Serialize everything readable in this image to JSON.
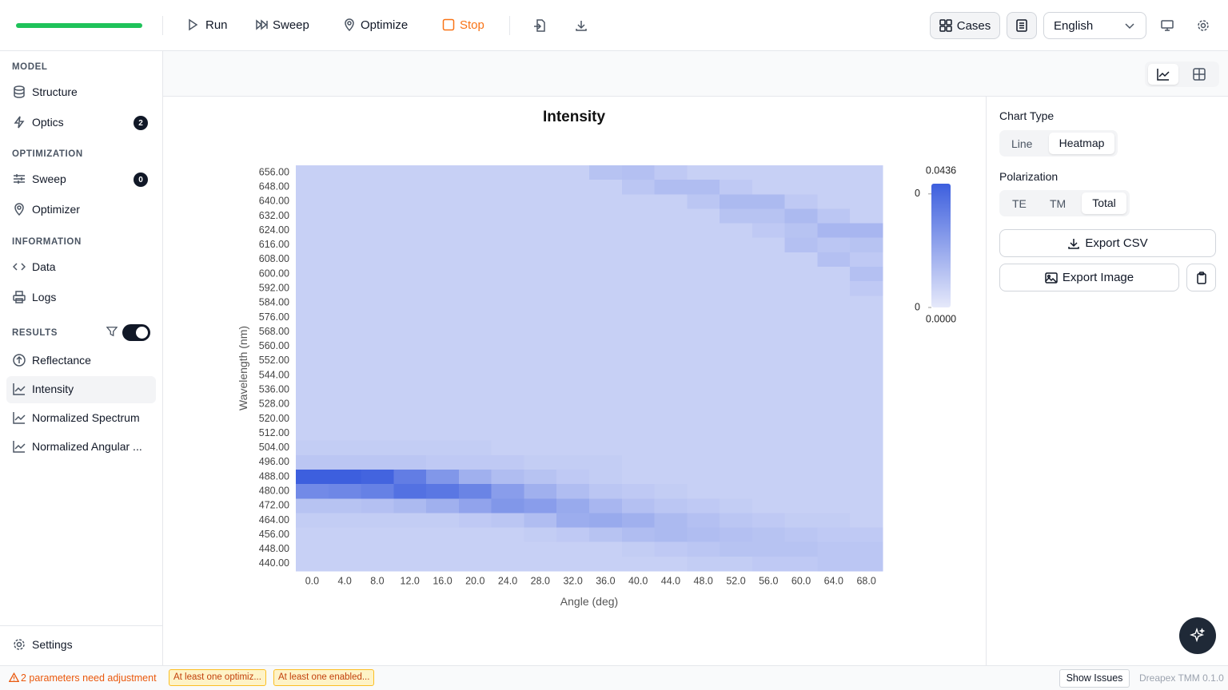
{
  "toolbar": {
    "run": "Run",
    "sweep": "Sweep",
    "optimize": "Optimize",
    "stop": "Stop",
    "cases": "Cases",
    "language": "English"
  },
  "sidebar": {
    "sections": [
      {
        "title": "MODEL",
        "items": [
          {
            "label": "Structure"
          },
          {
            "label": "Optics",
            "badge": 2
          }
        ]
      },
      {
        "title": "OPTIMIZATION",
        "items": [
          {
            "label": "Sweep",
            "badge": 0
          },
          {
            "label": "Optimizer"
          }
        ]
      },
      {
        "title": "INFORMATION",
        "items": [
          {
            "label": "Data"
          },
          {
            "label": "Logs"
          }
        ]
      },
      {
        "title": "RESULTS",
        "items": [
          {
            "label": "Reflectance"
          },
          {
            "label": "Intensity"
          },
          {
            "label": "Normalized Spectrum"
          },
          {
            "label": "Normalized Angular ..."
          }
        ]
      }
    ],
    "settings": "Settings"
  },
  "chart_data": {
    "type": "heatmap",
    "title": "Intensity",
    "x_label": "Angle (deg)",
    "y_label": "Wavelength (nm)",
    "categories": [
      "0.0",
      "4.0",
      "8.0",
      "12.0",
      "16.0",
      "20.0",
      "24.0",
      "28.0",
      "32.0",
      "36.0",
      "40.0",
      "44.0",
      "48.0",
      "52.0",
      "56.0",
      "60.0",
      "64.0",
      "68.0"
    ],
    "y_categories": [
      "656.00",
      "648.00",
      "640.00",
      "632.00",
      "624.00",
      "616.00",
      "608.00",
      "600.00",
      "592.00",
      "584.00",
      "576.00",
      "568.00",
      "560.00",
      "552.00",
      "544.00",
      "536.00",
      "528.00",
      "520.00",
      "512.00",
      "504.00",
      "496.00",
      "488.00",
      "480.00",
      "472.00",
      "464.00",
      "456.00",
      "448.00",
      "440.00"
    ],
    "values": [
      [
        0.008,
        0.008,
        0.008,
        0.008,
        0.008,
        0.008,
        0.008,
        0.008,
        0.008,
        0.012,
        0.013,
        0.01,
        0.008,
        0.008,
        0.008,
        0.008,
        0.008,
        0.008
      ],
      [
        0.008,
        0.008,
        0.008,
        0.008,
        0.008,
        0.008,
        0.008,
        0.008,
        0.008,
        0.008,
        0.011,
        0.014,
        0.014,
        0.01,
        0.008,
        0.008,
        0.008,
        0.008
      ],
      [
        0.008,
        0.008,
        0.008,
        0.008,
        0.008,
        0.008,
        0.008,
        0.008,
        0.008,
        0.008,
        0.008,
        0.008,
        0.011,
        0.015,
        0.015,
        0.01,
        0.008,
        0.008
      ],
      [
        0.008,
        0.008,
        0.008,
        0.008,
        0.008,
        0.008,
        0.008,
        0.008,
        0.008,
        0.008,
        0.008,
        0.008,
        0.008,
        0.012,
        0.012,
        0.015,
        0.011,
        0.008
      ],
      [
        0.008,
        0.008,
        0.008,
        0.008,
        0.008,
        0.008,
        0.008,
        0.008,
        0.008,
        0.008,
        0.008,
        0.008,
        0.008,
        0.008,
        0.01,
        0.012,
        0.016,
        0.016
      ],
      [
        0.008,
        0.008,
        0.008,
        0.008,
        0.008,
        0.008,
        0.008,
        0.008,
        0.008,
        0.008,
        0.008,
        0.008,
        0.008,
        0.008,
        0.008,
        0.013,
        0.011,
        0.012
      ],
      [
        0.008,
        0.008,
        0.008,
        0.008,
        0.008,
        0.008,
        0.008,
        0.008,
        0.008,
        0.008,
        0.008,
        0.008,
        0.008,
        0.008,
        0.008,
        0.008,
        0.013,
        0.01
      ],
      [
        0.008,
        0.008,
        0.008,
        0.008,
        0.008,
        0.008,
        0.008,
        0.008,
        0.008,
        0.008,
        0.008,
        0.008,
        0.008,
        0.008,
        0.008,
        0.008,
        0.008,
        0.013
      ],
      [
        0.008,
        0.008,
        0.008,
        0.008,
        0.008,
        0.008,
        0.008,
        0.008,
        0.008,
        0.008,
        0.008,
        0.008,
        0.008,
        0.008,
        0.008,
        0.008,
        0.008,
        0.01
      ],
      [
        0.008,
        0.008,
        0.008,
        0.008,
        0.008,
        0.008,
        0.008,
        0.008,
        0.008,
        0.008,
        0.008,
        0.008,
        0.008,
        0.008,
        0.008,
        0.008,
        0.008,
        0.008
      ],
      [
        0.008,
        0.008,
        0.008,
        0.008,
        0.008,
        0.008,
        0.008,
        0.008,
        0.008,
        0.008,
        0.008,
        0.008,
        0.008,
        0.008,
        0.008,
        0.008,
        0.008,
        0.008
      ],
      [
        0.008,
        0.008,
        0.008,
        0.008,
        0.008,
        0.008,
        0.008,
        0.008,
        0.008,
        0.008,
        0.008,
        0.008,
        0.008,
        0.008,
        0.008,
        0.008,
        0.008,
        0.008
      ],
      [
        0.008,
        0.008,
        0.008,
        0.008,
        0.008,
        0.008,
        0.008,
        0.008,
        0.008,
        0.008,
        0.008,
        0.008,
        0.008,
        0.008,
        0.008,
        0.008,
        0.008,
        0.008
      ],
      [
        0.008,
        0.008,
        0.008,
        0.008,
        0.008,
        0.008,
        0.008,
        0.008,
        0.008,
        0.008,
        0.008,
        0.008,
        0.008,
        0.008,
        0.008,
        0.008,
        0.008,
        0.008
      ],
      [
        0.008,
        0.008,
        0.008,
        0.008,
        0.008,
        0.008,
        0.008,
        0.008,
        0.008,
        0.008,
        0.008,
        0.008,
        0.008,
        0.008,
        0.008,
        0.008,
        0.008,
        0.008
      ],
      [
        0.008,
        0.008,
        0.008,
        0.008,
        0.008,
        0.008,
        0.008,
        0.008,
        0.008,
        0.008,
        0.008,
        0.008,
        0.008,
        0.008,
        0.008,
        0.008,
        0.008,
        0.008
      ],
      [
        0.008,
        0.008,
        0.008,
        0.008,
        0.008,
        0.008,
        0.008,
        0.008,
        0.008,
        0.008,
        0.008,
        0.008,
        0.008,
        0.008,
        0.008,
        0.008,
        0.008,
        0.008
      ],
      [
        0.008,
        0.008,
        0.008,
        0.008,
        0.008,
        0.008,
        0.008,
        0.008,
        0.008,
        0.008,
        0.008,
        0.008,
        0.008,
        0.008,
        0.008,
        0.008,
        0.008,
        0.008
      ],
      [
        0.008,
        0.008,
        0.008,
        0.008,
        0.008,
        0.008,
        0.008,
        0.008,
        0.008,
        0.008,
        0.008,
        0.008,
        0.008,
        0.008,
        0.008,
        0.008,
        0.008,
        0.008
      ],
      [
        0.009,
        0.009,
        0.009,
        0.009,
        0.009,
        0.009,
        0.008,
        0.008,
        0.008,
        0.008,
        0.008,
        0.008,
        0.008,
        0.008,
        0.008,
        0.008,
        0.008,
        0.008
      ],
      [
        0.011,
        0.011,
        0.011,
        0.011,
        0.01,
        0.01,
        0.01,
        0.009,
        0.009,
        0.009,
        0.008,
        0.008,
        0.008,
        0.008,
        0.008,
        0.008,
        0.008,
        0.008
      ],
      [
        0.0436,
        0.0436,
        0.042,
        0.034,
        0.026,
        0.018,
        0.014,
        0.012,
        0.01,
        0.009,
        0.008,
        0.008,
        0.008,
        0.008,
        0.008,
        0.008,
        0.008,
        0.008
      ],
      [
        0.03,
        0.031,
        0.033,
        0.038,
        0.036,
        0.032,
        0.024,
        0.018,
        0.014,
        0.011,
        0.01,
        0.009,
        0.008,
        0.008,
        0.008,
        0.008,
        0.008,
        0.008
      ],
      [
        0.012,
        0.012,
        0.013,
        0.015,
        0.018,
        0.022,
        0.026,
        0.024,
        0.02,
        0.016,
        0.013,
        0.011,
        0.01,
        0.009,
        0.008,
        0.008,
        0.008,
        0.008
      ],
      [
        0.009,
        0.009,
        0.009,
        0.009,
        0.009,
        0.01,
        0.011,
        0.014,
        0.019,
        0.02,
        0.018,
        0.015,
        0.013,
        0.011,
        0.01,
        0.009,
        0.009,
        0.008
      ],
      [
        0.008,
        0.008,
        0.008,
        0.008,
        0.008,
        0.008,
        0.008,
        0.009,
        0.01,
        0.012,
        0.014,
        0.015,
        0.014,
        0.013,
        0.012,
        0.011,
        0.01,
        0.01
      ],
      [
        0.008,
        0.008,
        0.008,
        0.008,
        0.008,
        0.008,
        0.008,
        0.008,
        0.008,
        0.008,
        0.009,
        0.01,
        0.011,
        0.012,
        0.012,
        0.012,
        0.011,
        0.011
      ],
      [
        0.008,
        0.008,
        0.008,
        0.008,
        0.008,
        0.008,
        0.008,
        0.008,
        0.008,
        0.008,
        0.008,
        0.008,
        0.009,
        0.009,
        0.01,
        0.01,
        0.011,
        0.011
      ]
    ],
    "colorscale": [
      "#e6e9fa",
      "#3d5fde"
    ],
    "colorbar": {
      "min": {
        "value": 0,
        "label": "0.0000"
      },
      "max": 0.0436,
      "ticks": [
        {
          "value": 0.04,
          "label": "0"
        },
        0
      ]
    }
  },
  "panel": {
    "chart_type_label": "Chart Type",
    "chart_types": [
      "Line",
      "Heatmap"
    ],
    "polarization_label": "Polarization",
    "polarizations": [
      "TE",
      "TM",
      "Total"
    ],
    "export_csv": "Export CSV",
    "export_image": "Export Image"
  },
  "status": {
    "warning": "2 parameters need adjustment",
    "chips": [
      "At least one optimiz...",
      "At least one enabled..."
    ],
    "show_issues": "Show Issues",
    "version": "Dreapex TMM 0.1.0"
  }
}
